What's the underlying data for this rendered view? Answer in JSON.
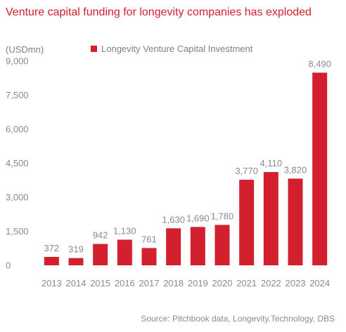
{
  "chart_data": {
    "type": "bar",
    "title": "Venture capital funding for longevity companies has exploded",
    "ylabel": "(USDmn)",
    "xlabel": "",
    "categories": [
      "2013",
      "2014",
      "2015",
      "2016",
      "2017",
      "2018",
      "2019",
      "2020",
      "2021",
      "2022",
      "2023",
      "2024"
    ],
    "series": [
      {
        "name": "Longevity Venture Capital Investment",
        "values": [
          372,
          319,
          942,
          1130,
          761,
          1630,
          1690,
          1780,
          3770,
          4110,
          3820,
          8490
        ],
        "data_labels": [
          "372",
          "319",
          "942",
          "1,130",
          "761",
          "1,630",
          "1,690",
          "1,780",
          "3,770",
          "4,110",
          "3,820",
          "8,490"
        ],
        "color": "#d2202f"
      }
    ],
    "ylim": [
      0,
      9000
    ],
    "yticks": [
      0,
      1500,
      3000,
      4500,
      6000,
      7500,
      9000
    ],
    "ytick_labels": [
      "0",
      "1,500",
      "3,000",
      "4,500",
      "6,000",
      "7,500",
      "9,000"
    ],
    "grid": false,
    "legend_position": "top",
    "source": "Source: Pitchbook data, Longevity.Technology, DBS"
  }
}
